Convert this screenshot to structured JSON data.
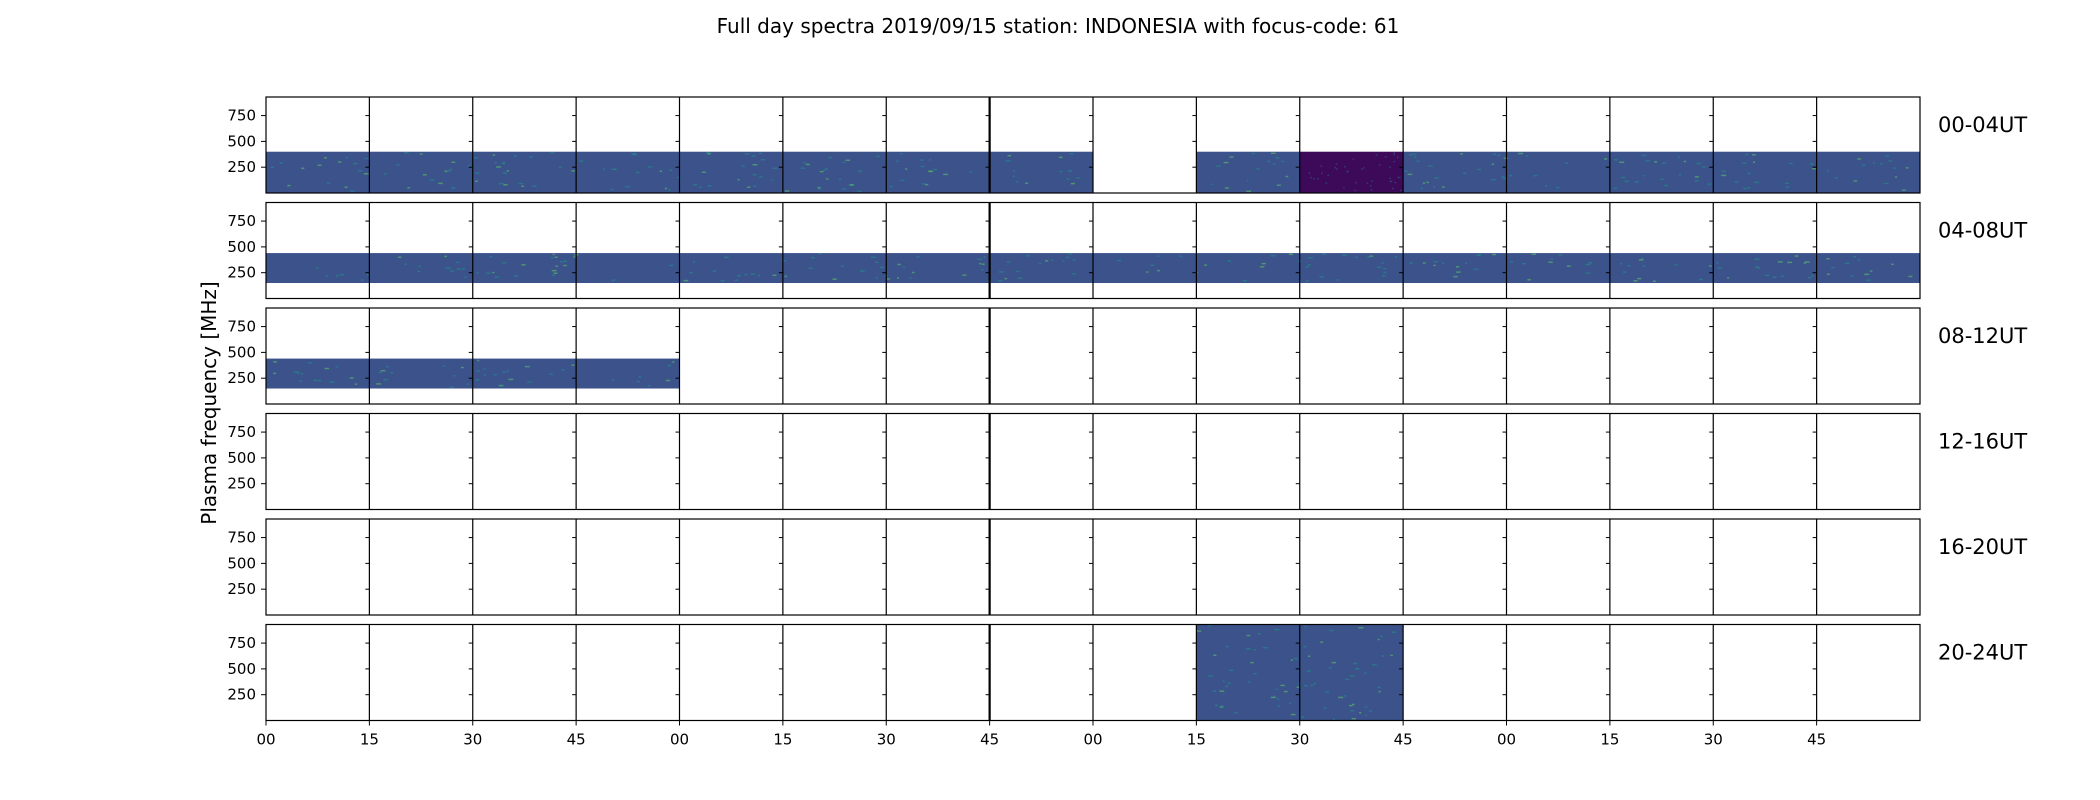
{
  "chart_data": {
    "type": "heatmap",
    "title": "Full day spectra 2019/09/15 station: INDONESIA with focus-code: 61",
    "ylabel": "Plasma frequency [MHz]",
    "xlabel": "",
    "y_ticks": [
      250,
      500,
      750
    ],
    "ylim": [
      0,
      930
    ],
    "x_tick_labels": [
      "00",
      "15",
      "30",
      "45",
      "00",
      "15",
      "30",
      "45",
      "00",
      "15",
      "30",
      "45",
      "00",
      "15",
      "30",
      "45"
    ],
    "segments_per_row": 16,
    "colormap": [
      "#440154",
      "#3b528b",
      "#21918c",
      "#5ec962"
    ],
    "rows": [
      {
        "label": "00-04UT",
        "f_min": 0,
        "f_max": 400,
        "segments": [
          {
            "t0": 0,
            "t1": 8
          },
          {
            "t0": 9,
            "t1": 10
          },
          {
            "t0": 10,
            "t1": 11,
            "level": "low"
          },
          {
            "t0": 11,
            "t1": 16
          }
        ]
      },
      {
        "label": "04-08UT",
        "f_min": 150,
        "f_max": 440,
        "segments": [
          {
            "t0": 0,
            "t1": 16
          }
        ]
      },
      {
        "label": "08-12UT",
        "f_min": 150,
        "f_max": 440,
        "segments": [
          {
            "t0": 0,
            "t1": 4
          }
        ]
      },
      {
        "label": "12-16UT",
        "f_min": 0,
        "f_max": 0,
        "segments": []
      },
      {
        "label": "16-20UT",
        "f_min": 0,
        "f_max": 0,
        "segments": []
      },
      {
        "label": "20-24UT",
        "f_min": 0,
        "f_max": 930,
        "segments": [
          {
            "t0": 9,
            "t1": 11
          }
        ]
      }
    ]
  }
}
